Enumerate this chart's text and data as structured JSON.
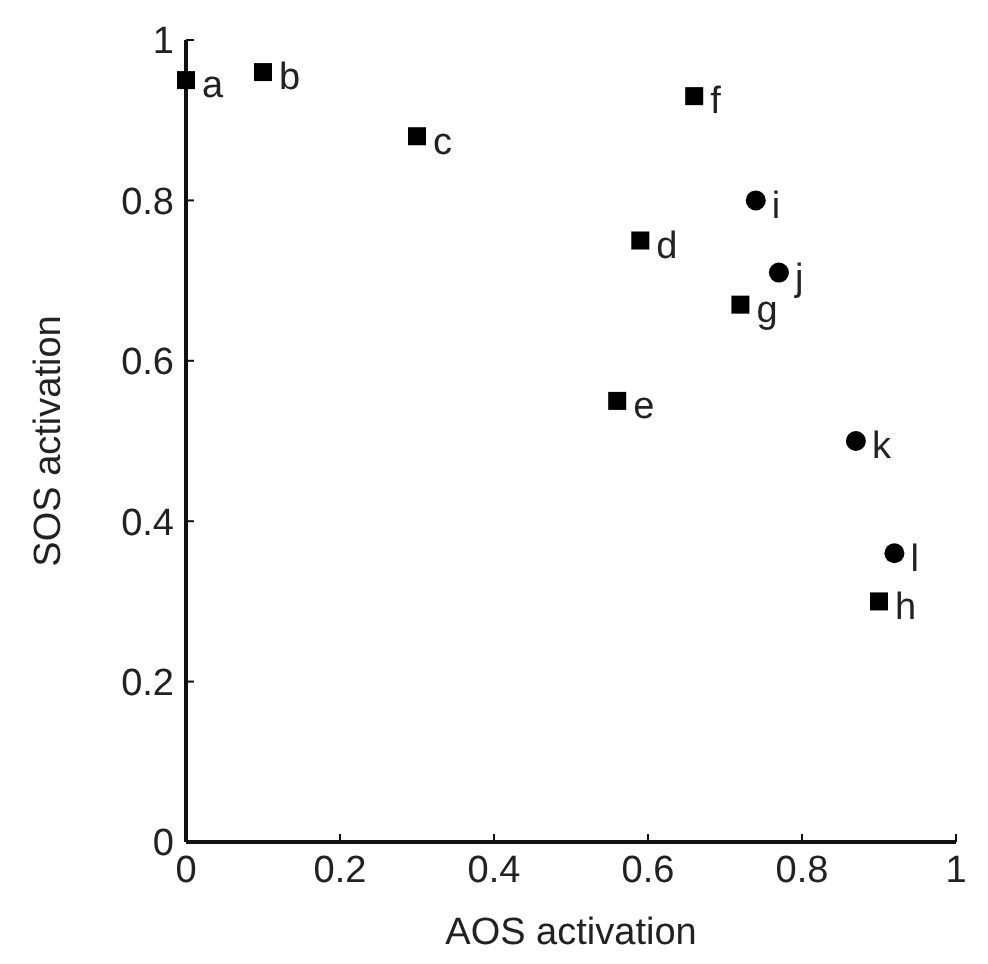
{
  "chart_data": {
    "type": "scatter",
    "xlabel": "AOS activation",
    "ylabel": "SOS activation",
    "xlim": [
      0,
      1
    ],
    "ylim": [
      0,
      1
    ],
    "xticks": [
      0,
      0.2,
      0.4,
      0.6,
      0.8,
      1
    ],
    "yticks": [
      0,
      0.2,
      0.4,
      0.6,
      0.8,
      1
    ],
    "series": [
      {
        "color": "#000000",
        "marker": "square",
        "x": [
          0,
          0.1,
          0.3,
          0.59,
          0.56,
          0.66,
          0.72,
          0.9
        ],
        "values": [
          0.95,
          0.96,
          0.88,
          0.75,
          0.55,
          0.93,
          0.67,
          0.3
        ]
      },
      {
        "color": "#000000",
        "marker": "circle",
        "x": [
          0.74,
          0.77,
          0.87,
          0.92
        ],
        "values": [
          0.8,
          0.71,
          0.5,
          0.36
        ]
      }
    ],
    "annotations": [
      {
        "text": "a",
        "x": 0,
        "y": 0.95
      },
      {
        "text": "b",
        "x": 0.1,
        "y": 0.96
      },
      {
        "text": "c",
        "x": 0.3,
        "y": 0.88
      },
      {
        "text": "d",
        "x": 0.59,
        "y": 0.75
      },
      {
        "text": "e",
        "x": 0.56,
        "y": 0.55
      },
      {
        "text": "f",
        "x": 0.66,
        "y": 0.93
      },
      {
        "text": "g",
        "x": 0.72,
        "y": 0.67
      },
      {
        "text": "h",
        "x": 0.9,
        "y": 0.3
      },
      {
        "text": "i",
        "x": 0.74,
        "y": 0.8
      },
      {
        "text": "j",
        "x": 0.77,
        "y": 0.71
      },
      {
        "text": "k",
        "x": 0.87,
        "y": 0.5
      },
      {
        "text": "l",
        "x": 0.92,
        "y": 0.36
      }
    ]
  }
}
